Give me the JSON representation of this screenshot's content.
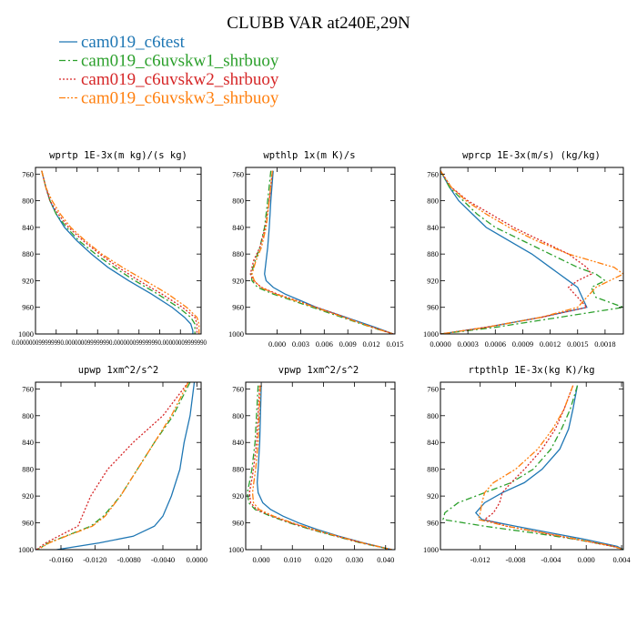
{
  "figure": {
    "title": "CLUBB VAR at240E,29N",
    "legend": [
      {
        "label": "cam019_c6test",
        "color": "#1f77b4"
      },
      {
        "label": "cam019_c6uvskw1_shrbuoy",
        "color": "#2ca02c"
      },
      {
        "label": "cam019_c6uvskw2_shrbuoy",
        "color": "#d62728"
      },
      {
        "label": "cam019_c6uvskw3_shrbuoy",
        "color": "#ff7f0e"
      }
    ]
  },
  "chart_data": [
    {
      "type": "line",
      "title": "wprtp  1E-3x(m kg)/(s kg)",
      "xlim": [
        1e-07,
        9e-07
      ],
      "ylim": [
        1000,
        750
      ],
      "y_ticks": [
        760,
        800,
        840,
        880,
        920,
        960,
        1000
      ],
      "x_ticks": [
        1e-07,
        2e-07,
        3e-07,
        4e-07,
        5e-07,
        6e-07,
        7e-07,
        8e-07,
        9e-07
      ],
      "x_tick_labels": [
        "0.0000001",
        "0.0000002",
        "0.0000003",
        "0.0000004",
        "0.0000005",
        "0.0000006",
        "0.0000007",
        "0.0000008",
        "0.0000009"
      ],
      "x_tick_labels_overlapping": "0.000000099999990.000000099999990.000000099999990.00000009999990",
      "y": [
        755,
        780,
        800,
        820,
        840,
        860,
        880,
        900,
        920,
        940,
        960,
        975,
        985,
        995,
        1000
      ],
      "series": [
        {
          "values": [
            1.3e-07,
            1.5e-07,
            1.7e-07,
            2e-07,
            2.4e-07,
            3e-07,
            3.7e-07,
            4.5e-07,
            5.5e-07,
            6.6e-07,
            7.6e-07,
            8.2e-07,
            8.5e-07,
            8.6e-07,
            8.6e-07
          ]
        },
        {
          "values": [
            1.3e-07,
            1.5e-07,
            1.7e-07,
            2e-07,
            2.5e-07,
            3.1e-07,
            3.9e-07,
            4.8e-07,
            5.8e-07,
            6.9e-07,
            7.9e-07,
            8.5e-07,
            8.7e-07,
            8.7e-07,
            8.7e-07
          ]
        },
        {
          "values": [
            1.3e-07,
            1.5e-07,
            1.7e-07,
            2.1e-07,
            2.6e-07,
            3.3e-07,
            4.1e-07,
            5e-07,
            6e-07,
            7.1e-07,
            8.1e-07,
            8.7e-07,
            8.8e-07,
            8.8e-07,
            8.8e-07
          ]
        },
        {
          "values": [
            1.3e-07,
            1.5e-07,
            1.8e-07,
            2.2e-07,
            2.7e-07,
            3.4e-07,
            4.2e-07,
            5.2e-07,
            6.3e-07,
            7.4e-07,
            8.3e-07,
            8.8e-07,
            8.9e-07,
            8.9e-07,
            8.9e-07
          ]
        }
      ]
    },
    {
      "type": "line",
      "title": "wpthlp  1x(m K)/s",
      "xlim": [
        -0.004,
        0.015
      ],
      "ylim": [
        1000,
        750
      ],
      "y_ticks": [
        760,
        800,
        840,
        880,
        920,
        960,
        1000
      ],
      "x_ticks": [
        0.0,
        0.003,
        0.006,
        0.009,
        0.012,
        0.015
      ],
      "x_tick_labels": [
        "0.000",
        "0.003",
        "0.006",
        "0.009",
        "0.012",
        "0.015"
      ],
      "y": [
        755,
        800,
        840,
        870,
        890,
        910,
        920,
        930,
        940,
        950,
        960,
        970,
        980,
        990,
        1000
      ],
      "series": [
        {
          "values": [
            -0.0005,
            -0.0008,
            -0.001,
            -0.0012,
            -0.0014,
            -0.0016,
            -0.0014,
            -0.0005,
            0.001,
            0.003,
            0.005,
            0.0075,
            0.01,
            0.0125,
            0.0148
          ]
        },
        {
          "values": [
            -0.0008,
            -0.0012,
            -0.0016,
            -0.0022,
            -0.0028,
            -0.0033,
            -0.0032,
            -0.0025,
            -0.0005,
            0.002,
            0.0045,
            0.007,
            0.0095,
            0.012,
            0.0148
          ]
        },
        {
          "values": [
            -0.0006,
            -0.001,
            -0.0015,
            -0.0022,
            -0.003,
            -0.0034,
            -0.003,
            -0.002,
            0.0,
            0.0025,
            0.005,
            0.0075,
            0.0098,
            0.0122,
            0.0148
          ]
        },
        {
          "values": [
            -0.0006,
            -0.001,
            -0.0014,
            -0.002,
            -0.0027,
            -0.0032,
            -0.0029,
            -0.0021,
            -0.0002,
            0.0023,
            0.0048,
            0.0073,
            0.0097,
            0.0121,
            0.0148
          ]
        }
      ]
    },
    {
      "type": "line",
      "title": "wprcp  1E-3x(m/s) (kg/kg)",
      "xlim": [
        0.0,
        0.002
      ],
      "ylim": [
        1000,
        750
      ],
      "y_ticks": [
        760,
        800,
        840,
        880,
        920,
        960,
        1000
      ],
      "x_ticks": [
        0.0,
        0.0003,
        0.0006,
        0.0009,
        0.0012,
        0.0015,
        0.0018
      ],
      "x_tick_labels": [
        "0.0000",
        "0.0003",
        "0.0006",
        "0.0009",
        "0.0012",
        "0.0015",
        "0.0018"
      ],
      "y": [
        755,
        780,
        800,
        820,
        840,
        860,
        880,
        900,
        910,
        920,
        930,
        945,
        960,
        975,
        990,
        1000
      ],
      "series": [
        {
          "values": [
            0.0,
            0.0001,
            0.0002,
            0.00035,
            0.0005,
            0.00075,
            0.001,
            0.0012,
            0.0013,
            0.0014,
            0.0015,
            0.00155,
            0.0016,
            0.0011,
            0.0005,
            0.0
          ]
        },
        {
          "values": [
            0.0,
            0.0001,
            0.00025,
            0.0004,
            0.0006,
            0.0009,
            0.0012,
            0.0015,
            0.0017,
            0.0018,
            0.00165,
            0.0017,
            0.002,
            0.0013,
            0.0006,
            0.0
          ]
        },
        {
          "values": [
            0.0,
            0.00012,
            0.0003,
            0.00055,
            0.0008,
            0.0011,
            0.0014,
            0.0016,
            0.00165,
            0.0015,
            0.0014,
            0.0015,
            0.0016,
            0.0011,
            0.0005,
            0.0
          ]
        },
        {
          "values": [
            0.0,
            0.00012,
            0.00028,
            0.0005,
            0.00075,
            0.00105,
            0.0014,
            0.0019,
            0.002,
            0.00185,
            0.0017,
            0.0016,
            0.0015,
            0.0011,
            0.0005,
            0.0
          ]
        }
      ]
    },
    {
      "type": "line",
      "title": "upwp  1xm^2/s^2",
      "xlim": [
        -0.019,
        0.0005
      ],
      "ylim": [
        1000,
        750
      ],
      "y_ticks": [
        760,
        800,
        840,
        880,
        920,
        960,
        1000
      ],
      "x_ticks": [
        -0.016,
        -0.012,
        -0.008,
        -0.004,
        0.0
      ],
      "x_tick_labels": [
        "-0.0160",
        "-0.0120",
        "-0.0080",
        "-0.0040",
        "0.0000"
      ],
      "y": [
        750,
        800,
        840,
        880,
        920,
        950,
        965,
        980,
        990,
        1000
      ],
      "series": [
        {
          "values": [
            -0.0003,
            -0.0008,
            -0.0015,
            -0.002,
            -0.003,
            -0.004,
            -0.005,
            -0.0075,
            -0.0115,
            -0.0165
          ]
        },
        {
          "values": [
            -0.0008,
            -0.0028,
            -0.005,
            -0.007,
            -0.009,
            -0.011,
            -0.0125,
            -0.0155,
            -0.0175,
            -0.0188
          ]
        },
        {
          "values": [
            -0.001,
            -0.004,
            -0.0075,
            -0.0105,
            -0.0125,
            -0.0135,
            -0.014,
            -0.0163,
            -0.0178,
            -0.0189
          ]
        },
        {
          "values": [
            -0.001,
            -0.003,
            -0.005,
            -0.007,
            -0.009,
            -0.0108,
            -0.0123,
            -0.0154,
            -0.0174,
            -0.0187
          ]
        }
      ]
    },
    {
      "type": "line",
      "title": "vpwp  1xm^2/s^2",
      "xlim": [
        -0.005,
        0.043
      ],
      "ylim": [
        1000,
        750
      ],
      "y_ticks": [
        760,
        800,
        840,
        880,
        920,
        960,
        1000
      ],
      "x_ticks": [
        0.0,
        0.01,
        0.02,
        0.03,
        0.04
      ],
      "x_tick_labels": [
        "0.000",
        "0.010",
        "0.020",
        "0.030",
        "0.040"
      ],
      "y": [
        755,
        840,
        880,
        900,
        915,
        930,
        940,
        950,
        960,
        970,
        980,
        990,
        1000
      ],
      "series": [
        {
          "values": [
            0.0,
            -0.0005,
            -0.001,
            -0.0013,
            -0.001,
            0.0005,
            0.003,
            0.007,
            0.012,
            0.018,
            0.025,
            0.033,
            0.042
          ]
        },
        {
          "values": [
            -0.001,
            -0.002,
            -0.003,
            -0.0038,
            -0.0045,
            -0.004,
            -0.002,
            0.003,
            0.009,
            0.016,
            0.024,
            0.032,
            0.042
          ]
        },
        {
          "values": [
            -0.0005,
            -0.0015,
            -0.0025,
            -0.0032,
            -0.0038,
            -0.0034,
            -0.0015,
            0.0035,
            0.0095,
            0.0165,
            0.0243,
            0.0325,
            0.042
          ]
        },
        {
          "values": [
            -0.0003,
            -0.001,
            -0.0018,
            -0.0024,
            -0.0028,
            -0.0025,
            -0.0007,
            0.004,
            0.01,
            0.017,
            0.0246,
            0.0327,
            0.042
          ]
        }
      ]
    },
    {
      "type": "line",
      "title": "rtpthlp  1E-3x(kg K)/kg",
      "xlim": [
        -0.0165,
        0.0042
      ],
      "ylim": [
        1000,
        750
      ],
      "y_ticks": [
        760,
        800,
        840,
        880,
        920,
        960,
        1000
      ],
      "x_ticks": [
        -0.012,
        -0.008,
        -0.004,
        0.0,
        0.004
      ],
      "x_tick_labels": [
        "-0.012",
        "-0.008",
        "-0.004",
        "0.000",
        "0.004"
      ],
      "y": [
        755,
        790,
        820,
        850,
        880,
        900,
        915,
        930,
        945,
        955,
        965,
        975,
        985,
        995,
        1000
      ],
      "series": [
        {
          "values": [
            -0.001,
            -0.0015,
            -0.002,
            -0.003,
            -0.005,
            -0.007,
            -0.0095,
            -0.0115,
            -0.0125,
            -0.0118,
            -0.008,
            -0.004,
            0.0,
            0.0035,
            0.0042
          ]
        },
        {
          "values": [
            -0.001,
            -0.0018,
            -0.0028,
            -0.004,
            -0.006,
            -0.0085,
            -0.0115,
            -0.0145,
            -0.016,
            -0.0162,
            -0.0115,
            -0.006,
            -0.001,
            0.003,
            0.0042
          ]
        },
        {
          "values": [
            -0.0015,
            -0.0025,
            -0.0035,
            -0.005,
            -0.007,
            -0.0085,
            -0.0095,
            -0.0098,
            -0.0105,
            -0.0115,
            -0.009,
            -0.005,
            -0.001,
            0.003,
            0.0042
          ]
        },
        {
          "values": [
            -0.0015,
            -0.0025,
            -0.0038,
            -0.0055,
            -0.008,
            -0.0105,
            -0.0115,
            -0.0118,
            -0.012,
            -0.0122,
            -0.009,
            -0.0048,
            -0.0008,
            0.0031,
            0.0042
          ]
        }
      ]
    }
  ]
}
